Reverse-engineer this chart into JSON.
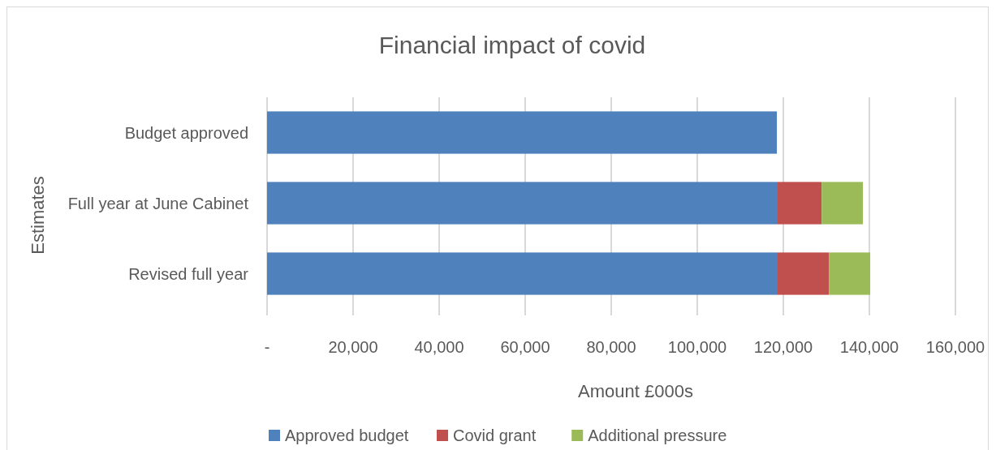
{
  "chart_data": {
    "type": "bar",
    "orientation": "horizontal",
    "stacked": true,
    "title": "Financial impact of covid",
    "xlabel": "Amount £000s",
    "ylabel": "Estimates",
    "categories": [
      "Budget approved",
      "Full year at June Cabinet",
      "Revised full year"
    ],
    "series": [
      {
        "name": "Approved budget",
        "color": "#4f81bd",
        "values": [
          118500,
          118500,
          118500
        ]
      },
      {
        "name": "Covid grant",
        "color": "#c0504d",
        "values": [
          0,
          10400,
          12100
        ]
      },
      {
        "name": "Additional pressure",
        "color": "#9bbb59",
        "values": [
          0,
          9600,
          9600
        ]
      }
    ],
    "xlim": [
      0,
      160000
    ],
    "xticks": [
      {
        "value": 0,
        "label": "-"
      },
      {
        "value": 20000,
        "label": "20,000"
      },
      {
        "value": 40000,
        "label": "40,000"
      },
      {
        "value": 60000,
        "label": "60,000"
      },
      {
        "value": 80000,
        "label": "80,000"
      },
      {
        "value": 100000,
        "label": "100,000"
      },
      {
        "value": 120000,
        "label": "120,000"
      },
      {
        "value": 140000,
        "label": "140,000"
      },
      {
        "value": 160000,
        "label": "160,000"
      }
    ],
    "grid": "x",
    "legend": "bottom"
  }
}
